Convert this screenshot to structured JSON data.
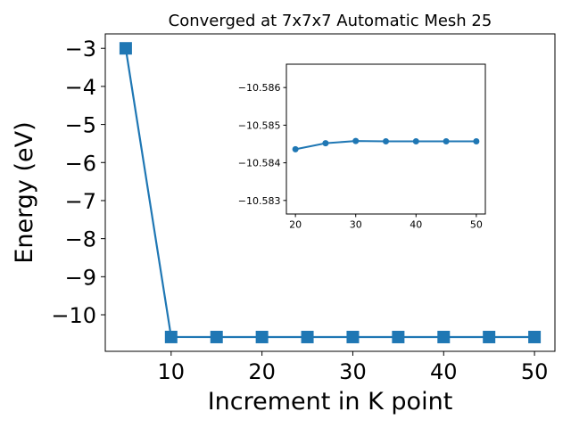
{
  "chart_data": [
    {
      "type": "line",
      "title": "Converged at 7x7x7 Automatic Mesh 25",
      "xlabel": "Increment in K point",
      "ylabel": "Energy (eV)",
      "x": [
        5,
        10,
        15,
        20,
        25,
        30,
        35,
        40,
        45,
        50
      ],
      "series": [
        {
          "values": [
            -3.0,
            -10.5836,
            -10.5845,
            -10.5846,
            -10.5846,
            -10.5846,
            -10.5846,
            -10.5846,
            -10.5846,
            -10.5846
          ]
        }
      ],
      "xlim": [
        2.75,
        52.25
      ],
      "ylim": [
        -10.96,
        -2.62
      ],
      "xticks": [
        10,
        20,
        30,
        40,
        50
      ],
      "yticks": [
        -3,
        -4,
        -5,
        -6,
        -7,
        -8,
        -9,
        -10
      ],
      "xtick_labels": [
        "10",
        "20",
        "30",
        "40",
        "50"
      ],
      "ytick_labels": [
        "−3",
        "−4",
        "−5",
        "−6",
        "−7",
        "−8",
        "−9",
        "−10"
      ],
      "marker": "square",
      "color": "#1f77b4",
      "grid": false
    },
    {
      "type": "line",
      "title": "",
      "xlabel": "",
      "ylabel": "",
      "x": [
        20,
        25,
        30,
        35,
        40,
        45,
        50
      ],
      "series": [
        {
          "values": [
            -10.58436,
            -10.58452,
            -10.58458,
            -10.58457,
            -10.58457,
            -10.58457,
            -10.58457
          ]
        }
      ],
      "xlim": [
        18.5,
        51.5
      ],
      "ylim": [
        -10.58264,
        -10.58662
      ],
      "yaxis_inverted": true,
      "xticks": [
        20,
        30,
        40,
        50
      ],
      "yticks": [
        -10.586,
        -10.585,
        -10.584,
        -10.583
      ],
      "xtick_labels": [
        "20",
        "30",
        "40",
        "50"
      ],
      "ytick_labels": [
        "−10.586",
        "−10.585",
        "−10.584",
        "−10.583"
      ],
      "marker": "circle",
      "color": "#1f77b4",
      "grid": false
    }
  ]
}
